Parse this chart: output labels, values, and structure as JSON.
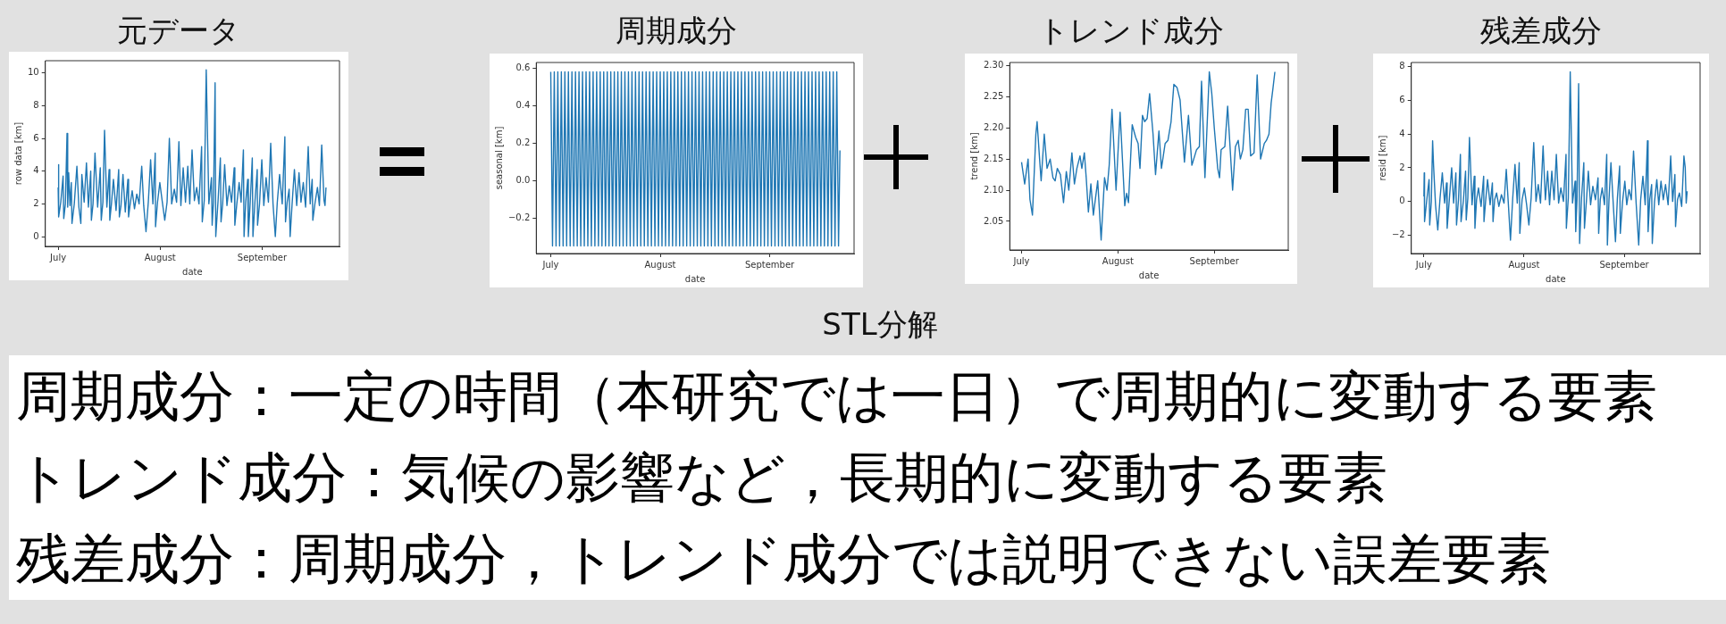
{
  "chart_data": [
    {
      "type": "line",
      "title": "元データ",
      "xlabel": "date",
      "ylabel": "row data [km]",
      "xlim": [
        "--06-27T02:24",
        "--09-24T12:00"
      ],
      "xticks": [
        {
          "value": "--07-01",
          "label": "July"
        },
        {
          "value": "--08-01",
          "label": "August"
        },
        {
          "value": "--09-01",
          "label": "September"
        }
      ],
      "ylim": [
        -0.6,
        10.75
      ],
      "yticks": [
        0,
        2,
        4,
        6,
        8,
        10
      ],
      "x": [
        "--07-01",
        "--07-01T02:24",
        "--07-01T04:48",
        "--07-01T19:12",
        "--07-02T12:00",
        "--07-02T16:48",
        "--07-03T04:48",
        "--07-03T16:48",
        "--07-03T21:36",
        "--07-04T04:48",
        "--07-04T14:24",
        "--07-05",
        "--07-05T04:48",
        "--07-05T21:36",
        "--07-06T16:48",
        "--07-07T07:12",
        "--07-07T21:36",
        "--07-08T04:48",
        "--07-08T21:36",
        "--07-09T14:24",
        "--07-10T04:48",
        "--07-10T21:36",
        "--07-11T02:24",
        "--07-11T14:24",
        "--07-12T04:48",
        "--07-13",
        "--07-13T19:12",
        "--07-14T02:24",
        "--07-14T14:24",
        "--07-15T02:24",
        "--07-15T19:12",
        "--07-16T12:00",
        "--07-16T16:48",
        "--07-17T04:48",
        "--07-17T19:12",
        "--07-18T14:24",
        "--07-19T09:36",
        "--07-19T14:24",
        "--07-20T02:24",
        "--07-20T16:48",
        "--07-21T09:36",
        "--07-22T04:48",
        "--07-22T09:36",
        "--07-22T21:36",
        "--07-23T12:00",
        "--07-24T04:48",
        "--07-24T21:36",
        "--07-25T14:24",
        "--07-26T09:36",
        "--07-27",
        "--07-27T16:48",
        "--07-28T09:36",
        "--07-29T02:24",
        "--07-29T19:12",
        "--07-30T12:00",
        "--07-30T14:24",
        "--07-31T04:48",
        "--07-31T21:36",
        "--08-01T14:24",
        "--08-02T09:36",
        "--08-03T02:24",
        "--08-03T19:12",
        "--08-04T12:00",
        "--08-05T07:12",
        "--08-06",
        "--08-06T16:48",
        "--08-07T07:12",
        "--08-08",
        "--08-08T16:48",
        "--08-09T09:36",
        "--08-10",
        "--08-10T16:48",
        "--08-11T09:36",
        "--08-12T02:24",
        "--08-12T19:12",
        "--08-13T14:24",
        "--08-13T19:12",
        "--08-14T09:36",
        "--08-15",
        "--08-15T19:12",
        "--08-16T14:24",
        "--08-16T19:12",
        "--08-17T04:48",
        "--08-17T16:48",
        "--08-17T21:36",
        "--08-18T14:24",
        "--08-19T07:12",
        "--08-19T12:00",
        "--08-20",
        "--08-20T14:24",
        "--08-21T07:12",
        "--08-22",
        "--08-22T16:48",
        "--08-23T12:00",
        "--08-23T16:48",
        "--08-24T07:12",
        "--08-25",
        "--08-25T14:24",
        "--08-26T07:12",
        "--08-26T12:00",
        "--08-27",
        "--08-27T14:24",
        "--08-27T19:12",
        "--08-28T09:36",
        "--08-29",
        "--08-29T04:48",
        "--08-29T19:12",
        "--08-30T12:00",
        "--08-30T14:24",
        "--08-31T04:48",
        "--08-31T21:36",
        "--09-01T12:00",
        "--09-02T04:48",
        "--09-02T21:36",
        "--09-03T14:24",
        "--09-04T07:12",
        "--09-05",
        "--09-05T14:24",
        "--09-06T07:12",
        "--09-07T02:24",
        "--09-07T21:36",
        "--09-08T02:24",
        "--09-08T14:24",
        "--09-09T04:48",
        "--09-09T12:00",
        "--09-10T02:24",
        "--09-10T19:12",
        "--09-11T12:00",
        "--09-12T04:48",
        "--09-12T19:12",
        "--09-13T12:00",
        "--09-14T04:48",
        "--09-15",
        "--09-15T14:24",
        "--09-16T04:48",
        "--09-16T09:36",
        "--09-17T02:24",
        "--09-17T19:12",
        "--09-18T09:36",
        "--09-19T02:24",
        "--09-19T19:12",
        "--09-20T02:24",
        "--09-20T09:36"
      ],
      "series": [
        {
          "color": "#1f77b4",
          "values": [
            3.0,
            4.4,
            1.2,
            2.1,
            3.7,
            1.1,
            2.0,
            6.3,
            1.8,
            3.9,
            1.9,
            3.3,
            0.8,
            2.0,
            4.3,
            1.8,
            0.8,
            3.8,
            2.1,
            4.5,
            1.8,
            4.0,
            1.0,
            2.0,
            5.1,
            1.8,
            4.2,
            1.0,
            2.1,
            6.5,
            1.8,
            4.1,
            1.0,
            2.0,
            3.5,
            1.6,
            4.1,
            1.2,
            1.9,
            3.8,
            1.5,
            3.5,
            1.2,
            2.0,
            2.8,
            1.7,
            2.6,
            2.0,
            4.3,
            1.9,
            0.3,
            2.1,
            4.7,
            2.0,
            5.1,
            0.6,
            2.1,
            3.3,
            2.2,
            1.0,
            2.1,
            6.0,
            2.0,
            2.9,
            2.1,
            5.8,
            1.9,
            4.2,
            2.1,
            4.3,
            2.0,
            5.3,
            2.2,
            3.0,
            2.0,
            5.5,
            0.9,
            2.2,
            10.2,
            2.0,
            3.6,
            0.7,
            2.1,
            9.4,
            0.0,
            2.2,
            4.8,
            0.9,
            2.0,
            4.4,
            1.9,
            3.1,
            2.1,
            4.2,
            0.7,
            2.0,
            3.3,
            2.1,
            5.3,
            0.0,
            2.1,
            3.5,
            0.0,
            2.2,
            4.8,
            0.0,
            2.1,
            4.1,
            0.7,
            2.0,
            4.7,
            1.9,
            3.6,
            2.1,
            5.7,
            2.0,
            0.0,
            2.1,
            3.8,
            2.0,
            6.1,
            0.9,
            2.1,
            2.9,
            0.0,
            2.0,
            4.1,
            1.9,
            3.9,
            2.1,
            3.3,
            1.8,
            5.5,
            2.0,
            3.5,
            1.0,
            2.1,
            3.0,
            1.9,
            5.6,
            2.2,
            1.9,
            3.0
          ]
        }
      ]
    },
    {
      "type": "line",
      "title": "周期成分",
      "xlabel": "date",
      "ylabel": "seasonal [km]",
      "xlim": [
        "--06-26T21:36",
        "--09-24T21:36"
      ],
      "xticks": [
        {
          "value": "--07-01",
          "label": "July"
        },
        {
          "value": "--08-01",
          "label": "August"
        },
        {
          "value": "--09-01",
          "label": "September"
        }
      ],
      "ylim": [
        -0.39,
        0.63
      ],
      "yticks": [
        {
          "value": -0.2,
          "label": "−0.2"
        },
        {
          "value": 0,
          "label": "0.0"
        },
        {
          "value": 0.2,
          "label": "0.2"
        },
        {
          "value": 0.4,
          "label": "0.4"
        },
        {
          "value": 0.6,
          "label": "0.6"
        }
      ],
      "x": [
        "--07-01",
        "--07-01T12:00",
        "--07-02",
        "--07-02T12:00",
        "--07-03",
        "--07-03T12:00",
        "--07-04",
        "--07-04T12:00",
        "--07-05",
        "--07-05T12:00",
        "--07-06",
        "--07-06T12:00",
        "--07-07",
        "--07-07T12:00",
        "--07-08",
        "--07-08T12:00",
        "--07-09",
        "--07-09T12:00",
        "--07-10",
        "--07-10T12:00",
        "--07-11",
        "--07-11T12:00",
        "--07-12",
        "--07-12T12:00",
        "--07-13",
        "--07-13T12:00",
        "--07-14",
        "--07-14T12:00",
        "--07-15",
        "--07-15T12:00",
        "--07-16",
        "--07-16T12:00",
        "--07-17",
        "--07-17T12:00",
        "--07-18",
        "--07-18T12:00",
        "--07-19",
        "--07-19T12:00",
        "--07-20",
        "--07-20T12:00",
        "--07-21",
        "--07-21T12:00",
        "--07-22",
        "--07-22T12:00",
        "--07-23",
        "--07-23T12:00",
        "--07-24",
        "--07-24T12:00",
        "--07-25",
        "--07-25T12:00",
        "--07-26",
        "--07-26T12:00",
        "--07-27",
        "--07-27T12:00",
        "--07-28",
        "--07-28T12:00",
        "--07-29",
        "--07-29T12:00",
        "--07-30",
        "--07-30T12:00",
        "--07-31",
        "--07-31T12:00",
        "--08-01",
        "--08-01T12:00",
        "--08-02",
        "--08-02T12:00",
        "--08-03",
        "--08-03T12:00",
        "--08-04",
        "--08-04T12:00",
        "--08-05",
        "--08-05T12:00",
        "--08-06",
        "--08-06T12:00",
        "--08-07",
        "--08-07T12:00",
        "--08-08",
        "--08-08T12:00",
        "--08-09",
        "--08-09T12:00",
        "--08-10",
        "--08-10T12:00",
        "--08-11",
        "--08-11T12:00",
        "--08-12",
        "--08-12T12:00",
        "--08-13",
        "--08-13T12:00",
        "--08-14",
        "--08-14T12:00",
        "--08-15",
        "--08-15T12:00",
        "--08-16",
        "--08-16T12:00",
        "--08-17",
        "--08-17T12:00",
        "--08-18",
        "--08-18T12:00",
        "--08-19",
        "--08-19T12:00",
        "--08-20",
        "--08-20T12:00",
        "--08-21",
        "--08-21T12:00",
        "--08-22",
        "--08-22T12:00",
        "--08-23",
        "--08-23T12:00",
        "--08-24",
        "--08-24T12:00",
        "--08-25",
        "--08-25T12:00",
        "--08-26",
        "--08-26T12:00",
        "--08-27",
        "--08-27T12:00",
        "--08-28",
        "--08-28T12:00",
        "--08-29",
        "--08-29T12:00",
        "--08-30",
        "--08-30T12:00",
        "--08-31",
        "--08-31T12:00",
        "--09-01",
        "--09-01T12:00",
        "--09-02",
        "--09-02T12:00",
        "--09-03",
        "--09-03T12:00",
        "--09-04",
        "--09-04T12:00",
        "--09-05",
        "--09-05T12:00",
        "--09-06",
        "--09-06T12:00",
        "--09-07",
        "--09-07T12:00",
        "--09-08",
        "--09-08T12:00",
        "--09-09",
        "--09-09T12:00",
        "--09-10",
        "--09-10T12:00",
        "--09-11",
        "--09-11T12:00",
        "--09-12",
        "--09-12T12:00",
        "--09-13",
        "--09-13T12:00",
        "--09-14",
        "--09-14T12:00",
        "--09-15",
        "--09-15T12:00",
        "--09-16",
        "--09-16T12:00",
        "--09-17",
        "--09-17T12:00",
        "--09-18",
        "--09-18T12:00",
        "--09-19",
        "--09-19T12:00",
        "--09-20",
        "--09-20T12:00",
        "--09-20T21:36"
      ],
      "series": [
        {
          "color": "#1f77b4",
          "values": [
            0.58,
            -0.35,
            0.58,
            -0.35,
            0.58,
            -0.35,
            0.58,
            -0.35,
            0.58,
            -0.35,
            0.58,
            -0.35,
            0.58,
            -0.35,
            0.58,
            -0.35,
            0.58,
            -0.35,
            0.58,
            -0.35,
            0.58,
            -0.35,
            0.58,
            -0.35,
            0.58,
            -0.35,
            0.58,
            -0.35,
            0.58,
            -0.35,
            0.58,
            -0.35,
            0.58,
            -0.35,
            0.58,
            -0.35,
            0.58,
            -0.35,
            0.58,
            -0.35,
            0.58,
            -0.35,
            0.58,
            -0.35,
            0.58,
            -0.35,
            0.58,
            -0.35,
            0.58,
            -0.35,
            0.58,
            -0.35,
            0.58,
            -0.35,
            0.58,
            -0.35,
            0.58,
            -0.35,
            0.58,
            -0.35,
            0.58,
            -0.35,
            0.58,
            -0.35,
            0.58,
            -0.35,
            0.58,
            -0.35,
            0.58,
            -0.35,
            0.58,
            -0.35,
            0.58,
            -0.35,
            0.58,
            -0.35,
            0.58,
            -0.35,
            0.58,
            -0.35,
            0.58,
            -0.35,
            0.58,
            -0.35,
            0.58,
            -0.35,
            0.58,
            -0.35,
            0.58,
            -0.35,
            0.58,
            -0.35,
            0.58,
            -0.35,
            0.58,
            -0.35,
            0.58,
            -0.35,
            0.58,
            -0.35,
            0.58,
            -0.35,
            0.58,
            -0.35,
            0.58,
            -0.35,
            0.58,
            -0.35,
            0.58,
            -0.35,
            0.58,
            -0.35,
            0.58,
            -0.35,
            0.58,
            -0.35,
            0.58,
            -0.35,
            0.58,
            -0.35,
            0.58,
            -0.35,
            0.58,
            -0.35,
            0.58,
            -0.35,
            0.58,
            -0.35,
            0.58,
            -0.35,
            0.58,
            -0.35,
            0.58,
            -0.35,
            0.58,
            -0.35,
            0.58,
            -0.35,
            0.58,
            -0.35,
            0.58,
            -0.35,
            0.58,
            -0.35,
            0.58,
            -0.35,
            0.58,
            -0.35,
            0.58,
            -0.35,
            0.58,
            -0.35,
            0.58,
            -0.35,
            0.58,
            -0.35,
            0.58,
            -0.35,
            0.58,
            -0.35,
            0.58,
            -0.35,
            0.58,
            -0.35,
            0.16
          ]
        }
      ]
    },
    {
      "type": "line",
      "title": "トレンド成分",
      "xlabel": "date",
      "ylabel": "trend [km]",
      "xlim": [
        "--06-27T04:48",
        "--09-24T19:12"
      ],
      "xticks": [
        {
          "value": "--07-01",
          "label": "July"
        },
        {
          "value": "--08-01",
          "label": "August"
        },
        {
          "value": "--09-01",
          "label": "September"
        }
      ],
      "ylim": [
        2.004,
        2.305
      ],
      "yticks": [
        2.05,
        {
          "value": 2.1,
          "label": "2.10"
        },
        2.15,
        {
          "value": 2.2,
          "label": "2.20"
        },
        2.25,
        {
          "value": 2.3,
          "label": "2.30"
        }
      ],
      "x": [
        "--07-01",
        "--07-02",
        "--07-03T02:24",
        "--07-03T16:48",
        "--07-04T12:00",
        "--07-05T14:24",
        "--07-06",
        "--07-06T19:12",
        "--07-07T07:12",
        "--07-08T07:12",
        "--07-09T04:48",
        "--07-10T04:48",
        "--07-11T02:24",
        "--07-11T19:12",
        "--07-12T12:00",
        "--07-13T12:00",
        "--07-14T12:00",
        "--07-15T09:36",
        "--07-16T04:48",
        "--07-17T04:48",
        "--07-18",
        "--07-18T19:12",
        "--07-19T19:12",
        "--07-20T09:36",
        "--07-21T04:48",
        "--07-21T19:12",
        "--07-22T12:00",
        "--07-23T07:12",
        "--07-24T02:24",
        "--07-25T12:00",
        "--07-26T14:24",
        "--07-27T16:48",
        "--07-28T12:00",
        "--07-29T04:48",
        "--07-30T02:24",
        "--07-31T09:36",
        "--08-01T16:48",
        "--08-03T04:48",
        "--08-03T19:12",
        "--08-04T09:36",
        "--08-05T14:24",
        "--08-06T16:48",
        "--08-07T12:00",
        "--08-08T02:24",
        "--08-08T21:36",
        "--08-09T14:24",
        "--08-10T09:36",
        "--08-11T04:48",
        "--08-12T07:12",
        "--08-13T02:24",
        "--08-14T04:48",
        "--08-15",
        "--08-16T04:48",
        "--08-17T02:24",
        "--08-18T02:24",
        "--08-19",
        "--08-20",
        "--08-21",
        "--08-22T09:36",
        "--08-23T16:48",
        "--08-24T19:12",
        "--08-26T07:12",
        "--08-27T04:48",
        "--08-27T21:36",
        "--08-29",
        "--08-30T09:36",
        "--08-31T04:48",
        "--09-01",
        "--09-02T02:24",
        "--09-02T16:48",
        "--09-03T04:48",
        "--09-04T09:36",
        "--09-05T07:12",
        "--09-06T21:36",
        "--09-07T19:12",
        "--09-08T16:48",
        "--09-09T09:36",
        "--09-10T04:48",
        "--09-11T02:24",
        "--09-11T21:36",
        "--09-12T16:48",
        "--09-13T19:12",
        "--09-14T19:12",
        "--09-15T21:36",
        "--09-17T02:24",
        "--09-17T19:12",
        "--09-18T14:24",
        "--09-19T07:12",
        "--09-19T19:12",
        "--09-20T12:00"
      ],
      "series": [
        {
          "color": "#1f77b4",
          "values": [
            2.145,
            2.11,
            2.15,
            2.085,
            2.06,
            2.19,
            2.21,
            2.15,
            2.115,
            2.19,
            2.135,
            2.15,
            2.12,
            2.115,
            2.135,
            2.125,
            2.08,
            2.13,
            2.1,
            2.16,
            2.11,
            2.135,
            2.155,
            2.135,
            2.16,
            2.12,
            2.065,
            2.11,
            2.06,
            2.115,
            2.02,
            2.12,
            2.1,
            2.14,
            2.23,
            2.1,
            2.225,
            2.075,
            2.095,
            2.08,
            2.205,
            2.185,
            2.175,
            2.135,
            2.22,
            2.21,
            2.215,
            2.255,
            2.19,
            2.125,
            2.195,
            2.135,
            2.175,
            2.18,
            2.21,
            2.27,
            2.265,
            2.245,
            2.145,
            2.22,
            2.14,
            2.165,
            2.17,
            2.275,
            2.12,
            2.29,
            2.255,
            2.2,
            2.135,
            2.12,
            2.165,
            2.17,
            2.235,
            2.1,
            2.17,
            2.18,
            2.15,
            2.165,
            2.23,
            2.23,
            2.155,
            2.16,
            2.285,
            2.15,
            2.175,
            2.18,
            2.19,
            2.24,
            2.26,
            2.29
          ]
        }
      ]
    },
    {
      "type": "line",
      "title": "残差成分",
      "xlabel": "date",
      "ylabel": "resid [km]",
      "xlim": [
        "--06-27T02:24",
        "--09-24T12:00"
      ],
      "xticks": [
        {
          "value": "--07-01",
          "label": "July"
        },
        {
          "value": "--08-01",
          "label": "August"
        },
        {
          "value": "--09-01",
          "label": "September"
        }
      ],
      "ylim": [
        -3.1,
        8.26
      ],
      "yticks": [
        {
          "value": -2,
          "label": "−2"
        },
        0,
        2,
        4,
        6,
        8
      ],
      "x": [
        "--07-01",
        "--07-01T02:24",
        "--07-01T04:48",
        "--07-01T21:36",
        "--07-02T14:24",
        "--07-02T19:12",
        "--07-03T07:12",
        "--07-03T16:48",
        "--07-04",
        "--07-04T14:24",
        "--07-05T07:12",
        "--07-06",
        "--07-06T16:48",
        "--07-07T09:36",
        "--07-08",
        "--07-08T04:48",
        "--07-08T21:36",
        "--07-09T14:24",
        "--07-10T04:48",
        "--07-10T21:36",
        "--07-11T02:24",
        "--07-11T16:48",
        "--07-12T07:12",
        "--07-12T12:00",
        "--07-13T04:48",
        "--07-13T21:36",
        "--07-14T02:24",
        "--07-14T14:24",
        "--07-15T02:24",
        "--07-15T21:36",
        "--07-16T14:24",
        "--07-16T19:12",
        "--07-17T07:12",
        "--07-17T21:36",
        "--07-18T16:48",
        "--07-19T12:00",
        "--07-19T14:24",
        "--07-20T02:24",
        "--07-20T16:48",
        "--07-21T12:00",
        "--07-22T04:48",
        "--07-22T09:36",
        "--07-22T21:36",
        "--07-23T12:00",
        "--07-24T04:48",
        "--07-25",
        "--07-25T19:12",
        "--07-26T12:00",
        "--07-27T02:24",
        "--07-27T19:12",
        "--07-28T12:00",
        "--07-29T04:48",
        "--07-29T21:36",
        "--07-30T12:00",
        "--07-30T16:48",
        "--07-31T09:36",
        "--08-01T02:24",
        "--08-01T19:12",
        "--08-02T12:00",
        "--08-03T04:48",
        "--08-04",
        "--08-04T16:48",
        "--08-05T09:36",
        "--08-06T02:24",
        "--08-06T21:36",
        "--08-07T14:24",
        "--08-08T07:12",
        "--08-08T21:36",
        "--08-09T14:24",
        "--08-10T07:12",
        "--08-11",
        "--08-11T16:48",
        "--08-12T09:36",
        "--08-13T04:48",
        "--08-14",
        "--08-14T02:24",
        "--08-14T16:48",
        "--08-15T07:12",
        "--08-16",
        "--08-16T19:12",
        "--08-17",
        "--08-17T09:36",
        "--08-17T21:36",
        "--08-18T04:48",
        "--08-18T19:12",
        "--08-19T12:00",
        "--08-19T16:48",
        "--08-20T07:12",
        "--08-20T21:36",
        "--08-21T14:24",
        "--08-22T07:12",
        "--08-23T02:24",
        "--08-23T21:36",
        "--08-24T02:24",
        "--08-24T14:24",
        "--08-25T04:48",
        "--08-25T21:36",
        "--08-26T14:24",
        "--08-26T19:12",
        "--08-27T07:12",
        "--08-27T21:36",
        "--08-28T14:24",
        "--08-29T07:12",
        "--08-29T21:36",
        "--08-30T14:24",
        "--08-30T19:12",
        "--08-31T12:00",
        "--09-01T04:48",
        "--09-01T19:12",
        "--09-02T12:00",
        "--09-03T04:48",
        "--09-03T21:36",
        "--09-04T16:48",
        "--09-05T12:00",
        "--09-06T02:24",
        "--09-06T19:12",
        "--09-07T12:00",
        "--09-08T04:48",
        "--09-08T09:36",
        "--09-08T21:36",
        "--09-09T12:00",
        "--09-09T16:48",
        "--09-10T09:36",
        "--09-11T02:24",
        "--09-11T16:48",
        "--09-12T09:36",
        "--09-13T02:24",
        "--09-13T19:12",
        "--09-14T14:24",
        "--09-15T09:36",
        "--09-16",
        "--09-16T16:48",
        "--09-16T21:36",
        "--09-17T12:00",
        "--09-18T02:24",
        "--09-18T19:12",
        "--09-19T12:00",
        "--09-19T21:36",
        "--09-20T04:48",
        "--09-20T12:00"
      ],
      "series": [
        {
          "color": "#1f77b4",
          "values": [
            0.3,
            1.7,
            -1.2,
            0.1,
            1.3,
            -1.4,
            0.0,
            3.6,
            2.1,
            -0.2,
            -1.7,
            0.2,
            1.7,
            -0.1,
            1.1,
            -1.6,
            0.2,
            2.0,
            -0.1,
            1.7,
            -1.4,
            0.1,
            2.8,
            -1.2,
            0.0,
            1.8,
            -1.1,
            0.2,
            3.8,
            -0.2,
            1.5,
            -1.6,
            0.1,
            0.8,
            -0.3,
            1.5,
            -1.2,
            0.0,
            1.3,
            -0.2,
            1.1,
            -1.2,
            0.1,
            0.5,
            -0.3,
            0.4,
            -0.1,
            1.9,
            0.0,
            -2.3,
            0.2,
            2.2,
            -0.1,
            2.3,
            -1.9,
            0.1,
            0.8,
            -0.2,
            -1.4,
            0.2,
            3.5,
            0.0,
            1.0,
            -0.1,
            3.3,
            0.1,
            1.8,
            -0.2,
            1.8,
            0.1,
            2.8,
            -0.1,
            0.8,
            0.0,
            2.8,
            -1.6,
            0.2,
            7.7,
            -0.1,
            1.2,
            -1.8,
            0.1,
            7.0,
            -2.5,
            0.2,
            2.3,
            -1.6,
            0.0,
            1.8,
            -0.2,
            0.9,
            0.1,
            1.4,
            -1.9,
            0.1,
            0.8,
            -0.2,
            2.8,
            -2.6,
            0.1,
            2.3,
            -0.1,
            -2.4,
            0.2,
            2.1,
            -1.9,
            0.0,
            1.2,
            -0.2,
            0.7,
            0.1,
            3.0,
            -0.1,
            -2.6,
            0.1,
            1.5,
            -0.2,
            3.6,
            -1.8,
            0.1,
            1.0,
            -2.5,
            0.0,
            1.3,
            -0.2,
            1.2,
            0.1,
            1.0,
            -0.2,
            2.7,
            0.0,
            1.6,
            -1.5,
            0.1,
            0.5,
            -0.3,
            2.7,
            2.0,
            -0.1,
            0.6
          ]
        }
      ]
    },
    {
      "type": "other",
      "title": "STL分解",
      "annotations": [
        "周期成分：一定の時間（本研究では一日）で周期的に変動する要素",
        "トレンド成分：気候の影響など，長期的に変動する要素",
        "残差成分：周期成分，トレンド成分では説明できない誤差要素"
      ]
    }
  ]
}
